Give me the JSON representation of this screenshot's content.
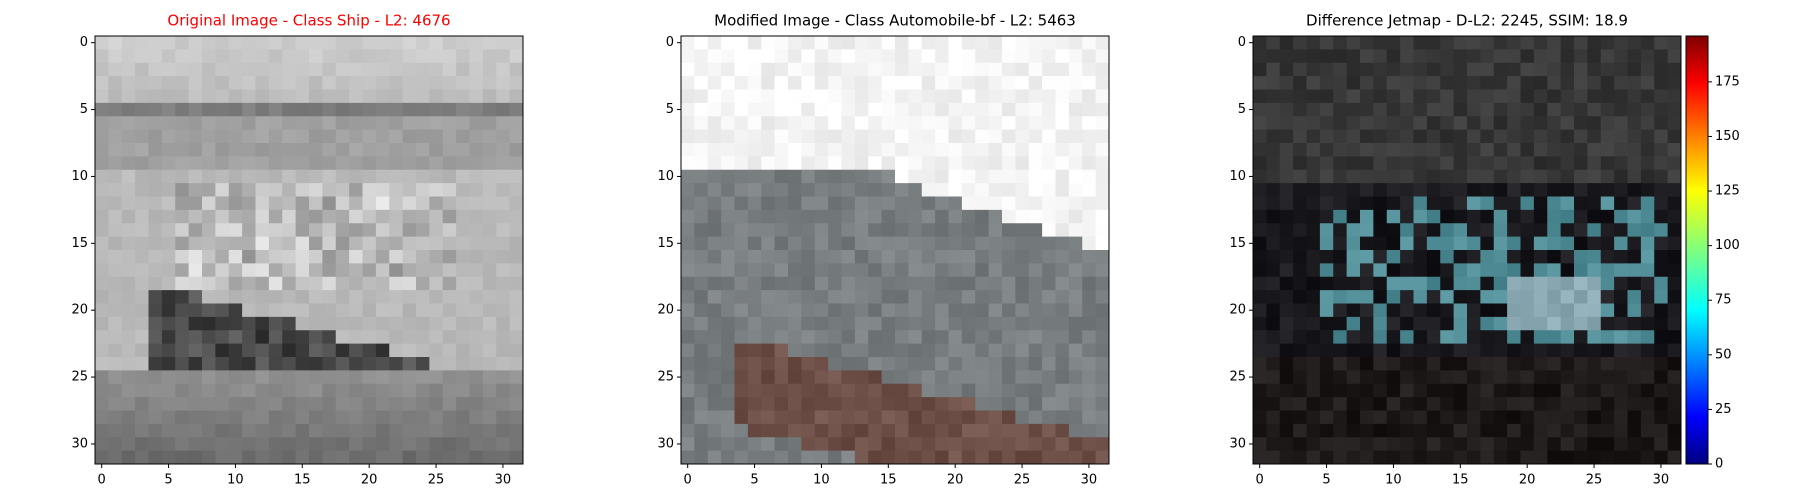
{
  "chart_data": [
    {
      "type": "image",
      "title": "Original Image - Class Ship - L2: 4676",
      "title_color": "#ff0000",
      "xlim": [
        -0.5,
        31.5
      ],
      "ylim": [
        31.5,
        -0.5
      ],
      "xticks": [
        0,
        5,
        10,
        15,
        20,
        25,
        30
      ],
      "yticks": [
        0,
        5,
        10,
        15,
        20,
        25,
        30
      ]
    },
    {
      "type": "image",
      "title": "Modified Image - Class Automobile-bf - L2: 5463",
      "xlim": [
        -0.5,
        31.5
      ],
      "ylim": [
        31.5,
        -0.5
      ],
      "xticks": [
        0,
        5,
        10,
        15,
        20,
        25,
        30
      ],
      "yticks": [
        0,
        5,
        10,
        15,
        20,
        25,
        30
      ]
    },
    {
      "type": "image",
      "title": "Difference Jetmap - D-L2: 2245, SSIM: 18.9",
      "xlim": [
        -0.5,
        31.5
      ],
      "ylim": [
        31.5,
        -0.5
      ],
      "xticks": [
        0,
        5,
        10,
        15,
        20,
        25,
        30
      ],
      "yticks": [
        0,
        5,
        10,
        15,
        20,
        25,
        30
      ],
      "colorbar": {
        "colormap": "jet",
        "lim": [
          0,
          196
        ],
        "ticks": [
          0,
          25,
          50,
          75,
          100,
          125,
          150,
          175
        ]
      }
    }
  ]
}
